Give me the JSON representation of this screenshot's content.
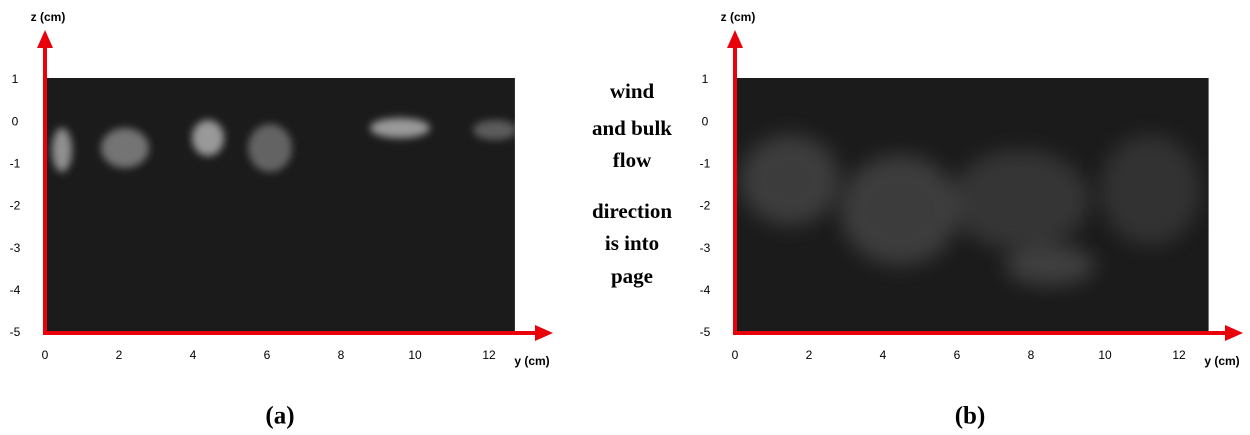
{
  "chart_data": [
    {
      "type": "image",
      "x_label": "y (cm)",
      "y_label": "z (cm)",
      "xlim": [
        0,
        12.7
      ],
      "ylim": [
        -5,
        1
      ],
      "xticks": [
        0,
        2,
        4,
        6,
        8,
        10,
        12
      ],
      "yticks": [
        -5,
        -4,
        -3,
        -2,
        -1,
        0,
        1
      ],
      "caption": "(a)"
    },
    {
      "type": "image",
      "x_label": "y (cm)",
      "y_label": "z (cm)",
      "xlim": [
        0,
        12.8
      ],
      "ylim": [
        -5,
        1
      ],
      "xticks": [
        0,
        2,
        4,
        6,
        8,
        10,
        12
      ],
      "yticks": [
        -5,
        -4,
        -3,
        -2,
        -1,
        0,
        1
      ],
      "caption": "(b)"
    }
  ],
  "annotation": [
    "wind",
    "and bulk",
    "flow",
    "direction",
    "is into",
    "page"
  ]
}
